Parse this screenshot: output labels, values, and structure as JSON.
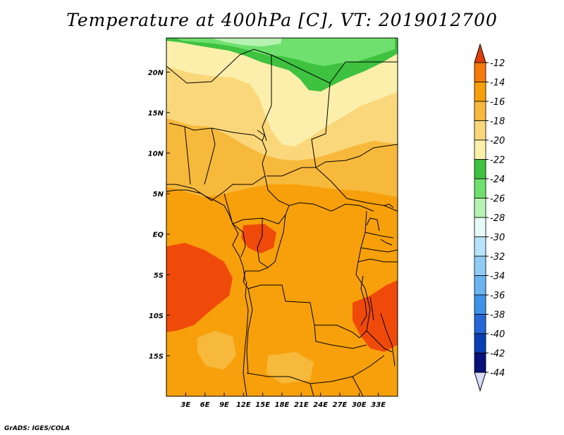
{
  "title": "Temperature at 400hPa [C], VT: 2019012700",
  "credit": "GrADS: IGES/COLA",
  "map": {
    "lon_ticks": [
      "3E",
      "6E",
      "9E",
      "12E",
      "15E",
      "18E",
      "21E",
      "24E",
      "27E",
      "30E",
      "33E"
    ],
    "lat_ticks": [
      "20N",
      "15N",
      "10N",
      "5N",
      "EQ",
      "5S",
      "10S",
      "15S"
    ]
  },
  "colorbar": {
    "labels": [
      "-12",
      "-14",
      "-16",
      "-18",
      "-20",
      "-22",
      "-24",
      "-26",
      "-28",
      "-30",
      "-32",
      "-34",
      "-36",
      "-38",
      "-40",
      "-42",
      "-44"
    ],
    "colors": [
      "#f04a0a",
      "#f57a0a",
      "#f79e0a",
      "#f7b83c",
      "#fad77a",
      "#fcefac",
      "#3ec240",
      "#6fe06e",
      "#b6f2b1",
      "#e4fbf8",
      "#b7e4fc",
      "#91ccf7",
      "#6ab4f2",
      "#3f92ea",
      "#2766d8",
      "#0a3eb4",
      "#08107a"
    ],
    "end_low_color": "#d8dcfb",
    "end_high_color": "#e03e08"
  }
}
